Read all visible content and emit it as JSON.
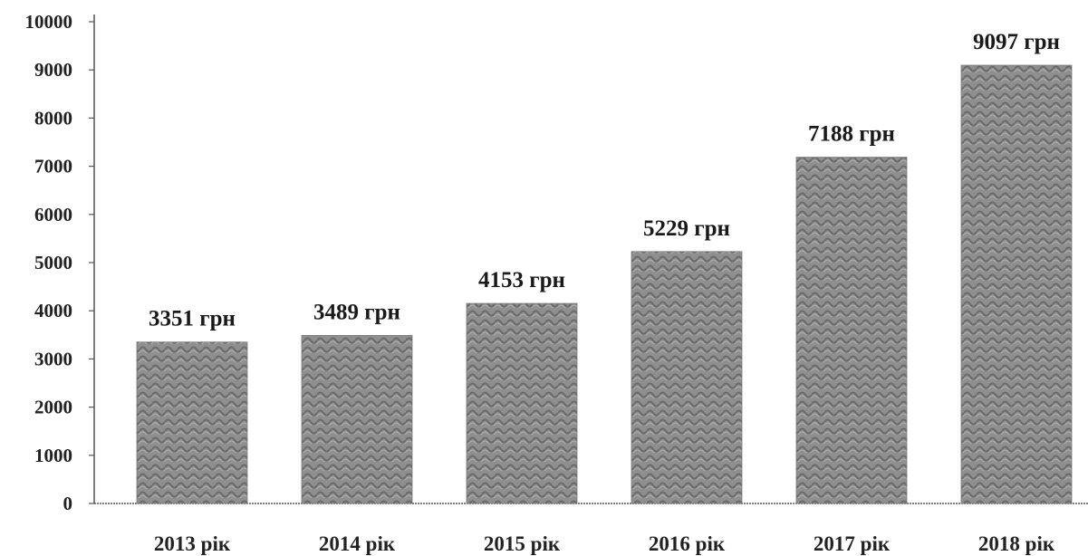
{
  "chart_data": {
    "type": "bar",
    "categories": [
      "2013 рік",
      "2014 рік",
      "2015 рік",
      "2016 рік",
      "2017 рік",
      "2018 рік"
    ],
    "values": [
      3351,
      3489,
      4153,
      5229,
      7188,
      9097
    ],
    "data_labels": [
      "3351 грн",
      "3489 грн",
      "4153 грн",
      "5229 грн",
      "7188 грн",
      "9097 грн"
    ],
    "yticks": [
      "0",
      "1000",
      "2000",
      "3000",
      "4000",
      "5000",
      "6000",
      "7000",
      "8000",
      "9000",
      "10000"
    ],
    "ylim": [
      0,
      10000
    ],
    "grid": false,
    "legend": "none",
    "colors": {
      "bar": "#8f8f8f",
      "bar_texture": "#6e6e6e",
      "axis": "#555555",
      "text": "#222222"
    }
  }
}
